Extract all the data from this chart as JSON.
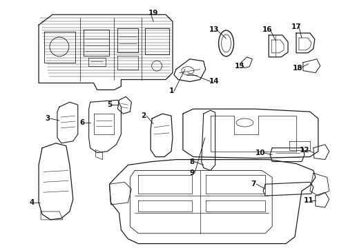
{
  "background_color": "#ffffff",
  "fig_width": 4.89,
  "fig_height": 3.6,
  "dpi": 100,
  "line_color": "#1a1a1a",
  "label_fontsize": 7.5,
  "label_color": "#111111",
  "label_fontsize_sm": 6.5
}
